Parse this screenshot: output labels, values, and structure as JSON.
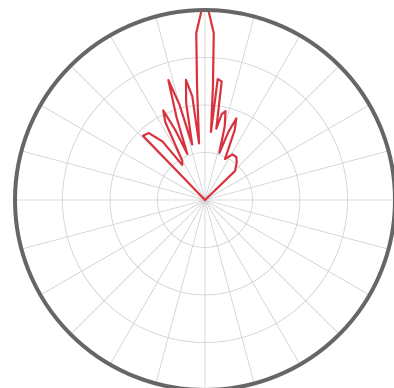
{
  "chart_data": {
    "type": "polar-line",
    "title": "",
    "angle_direction": "clockwise",
    "zero_angle": "top",
    "angle_step_deg": 15,
    "radial_range": [
      0,
      1
    ],
    "radial_ticks": [
      0.25,
      0.5,
      0.75,
      1.0
    ],
    "grid": true,
    "show_tick_labels": false,
    "colors": {
      "series": "#d9323f",
      "grid": "#cfcfcf",
      "frame": "#666666",
      "background": "#ffffff"
    },
    "series": [
      {
        "points": [
          [
            -44,
            0.0
          ],
          [
            -44,
            0.47
          ],
          [
            -40,
            0.46
          ],
          [
            -36,
            0.38
          ],
          [
            -33,
            0.22
          ],
          [
            -30,
            0.24
          ],
          [
            -27,
            0.46
          ],
          [
            -25,
            0.52
          ],
          [
            -23,
            0.4
          ],
          [
            -21,
            0.26
          ],
          [
            -19,
            0.46
          ],
          [
            -17,
            0.66
          ],
          [
            -15,
            0.52
          ],
          [
            -13,
            0.3
          ],
          [
            -11,
            0.52
          ],
          [
            -9,
            0.64
          ],
          [
            -7,
            0.55
          ],
          [
            -6,
            0.3
          ],
          [
            -4,
            0.6
          ],
          [
            -3,
            0.88
          ],
          [
            -1,
            1.0
          ],
          [
            0,
            1.0
          ],
          [
            1,
            1.0
          ],
          [
            3,
            0.88
          ],
          [
            4,
            0.6
          ],
          [
            5,
            0.36
          ],
          [
            6,
            0.64
          ],
          [
            8,
            0.63
          ],
          [
            9,
            0.38
          ],
          [
            11,
            0.46
          ],
          [
            13,
            0.48
          ],
          [
            15,
            0.4
          ],
          [
            17,
            0.26
          ],
          [
            19,
            0.38
          ],
          [
            21,
            0.46
          ],
          [
            23,
            0.4
          ],
          [
            26,
            0.24
          ],
          [
            31,
            0.28
          ],
          [
            36,
            0.28
          ],
          [
            40,
            0.26
          ],
          [
            46,
            0.22
          ],
          [
            46,
            0.0
          ]
        ]
      }
    ]
  }
}
